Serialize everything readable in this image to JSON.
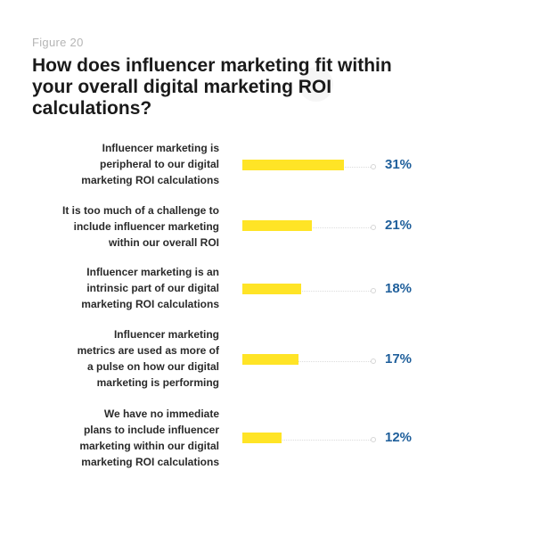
{
  "figure_label": "Figure 20",
  "title": "How does influencer marketing fit within your overall digital marketing ROI calculations?",
  "colors": {
    "bar": "#ffe426",
    "value_text": "#1f5f9b",
    "track": "#dcdcdc"
  },
  "chart_data": {
    "type": "bar",
    "orientation": "horizontal",
    "title": "How does influencer marketing fit within your overall digital marketing ROI calculations?",
    "categories": [
      [
        "Influencer marketing is",
        "peripheral to our digital",
        "marketing ROI calculations"
      ],
      [
        "It is too much of a challenge  to",
        "include influencer marketing",
        "within our overall ROI"
      ],
      [
        "Influencer marketing is an",
        "intrinsic part of our digital",
        "marketing ROI calculations"
      ],
      [
        "Influencer marketing",
        "metrics are used as more of",
        "a pulse on how our digital",
        "marketing is performing"
      ],
      [
        "We have no immediate",
        "plans to include influencer",
        "marketing within our digital",
        "marketing ROI calculations"
      ]
    ],
    "values": [
      31,
      21,
      18,
      17,
      12
    ],
    "value_labels": [
      "31%",
      "21%",
      "18%",
      "17%",
      "12%"
    ],
    "unit": "%",
    "xlim": [
      0,
      39
    ],
    "grid": false,
    "legend": "none"
  }
}
